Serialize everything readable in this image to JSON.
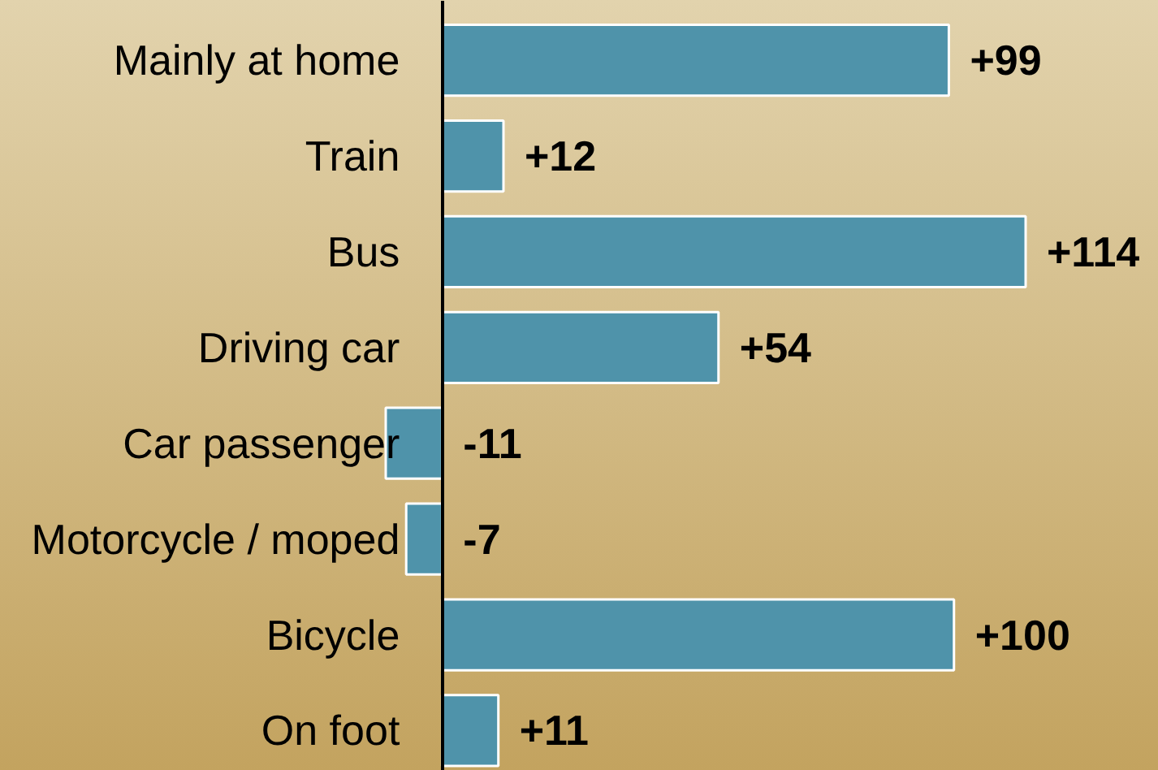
{
  "chart_data": {
    "type": "bar",
    "orientation": "horizontal",
    "categories": [
      "Mainly at home",
      "Train",
      "Bus",
      "Driving car",
      "Car passenger",
      "Motorcycle / moped",
      "Bicycle",
      "On foot"
    ],
    "values": [
      99,
      12,
      114,
      54,
      -11,
      -7,
      100,
      11
    ],
    "value_labels": [
      "+99",
      "+12",
      "+114",
      "+54",
      "-11",
      "-7",
      "+100",
      "+11"
    ],
    "color": "#4f93aa",
    "grid": false,
    "tick_labels": "y"
  }
}
